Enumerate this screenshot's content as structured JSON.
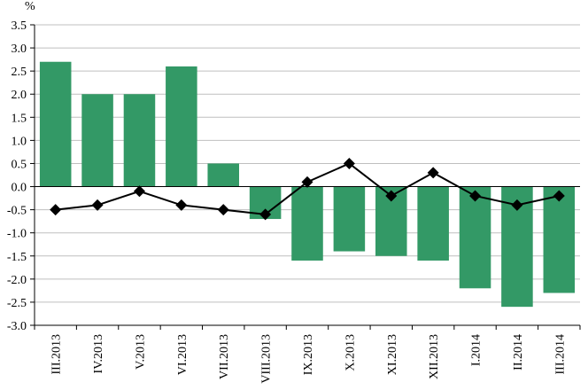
{
  "chart_data": {
    "type": "bar",
    "ylabel": "%",
    "ylim": [
      -3.0,
      3.5
    ],
    "ytick_step": 0.5,
    "y_tick_labels": [
      "3.5",
      "3.0",
      "2.5",
      "2.0",
      "1.5",
      "1.0",
      "0.5",
      "0.0",
      "-0.5",
      "-1.0",
      "-1.5",
      "-2.0",
      "-2.5",
      "-3.0"
    ],
    "categories": [
      "III.2013",
      "IV.2013",
      "V.2013",
      "VI.2013",
      "VII.2013",
      "VIII.2013",
      "IX.2013",
      "X.2013",
      "XI.2013",
      "XII.2013",
      "I.2014",
      "II.2014",
      "III.2014"
    ],
    "series": [
      {
        "kind": "bar",
        "color": "#339966",
        "values": [
          2.7,
          2.0,
          2.0,
          2.6,
          0.5,
          -0.7,
          -1.6,
          -1.4,
          -1.5,
          -1.6,
          -2.2,
          -2.6,
          -2.3
        ]
      },
      {
        "kind": "line",
        "marker": "diamond",
        "color": "#000000",
        "values": [
          -0.5,
          -0.4,
          -0.1,
          -0.4,
          -0.5,
          -0.6,
          0.1,
          0.5,
          -0.2,
          0.3,
          -0.2,
          -0.4,
          -0.2
        ]
      }
    ],
    "grid": true,
    "legend": "none"
  }
}
